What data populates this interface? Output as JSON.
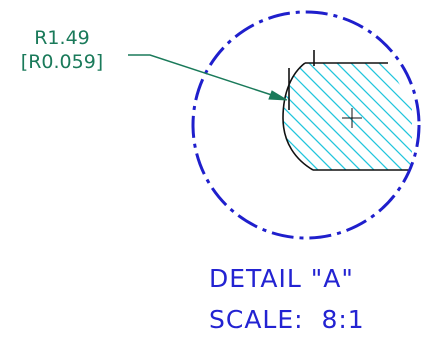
{
  "dimension": {
    "radius_mm": "R1.49",
    "radius_in": "[R0.059]",
    "color": "#1a7a5a"
  },
  "detail": {
    "title": "DETAIL \"A\"",
    "scale": "SCALE:  8:1",
    "color": "#2323d2"
  },
  "colors": {
    "boundary_circle": "#1f1fcc",
    "hatch": "#22c6dc",
    "outline": "#111111"
  }
}
